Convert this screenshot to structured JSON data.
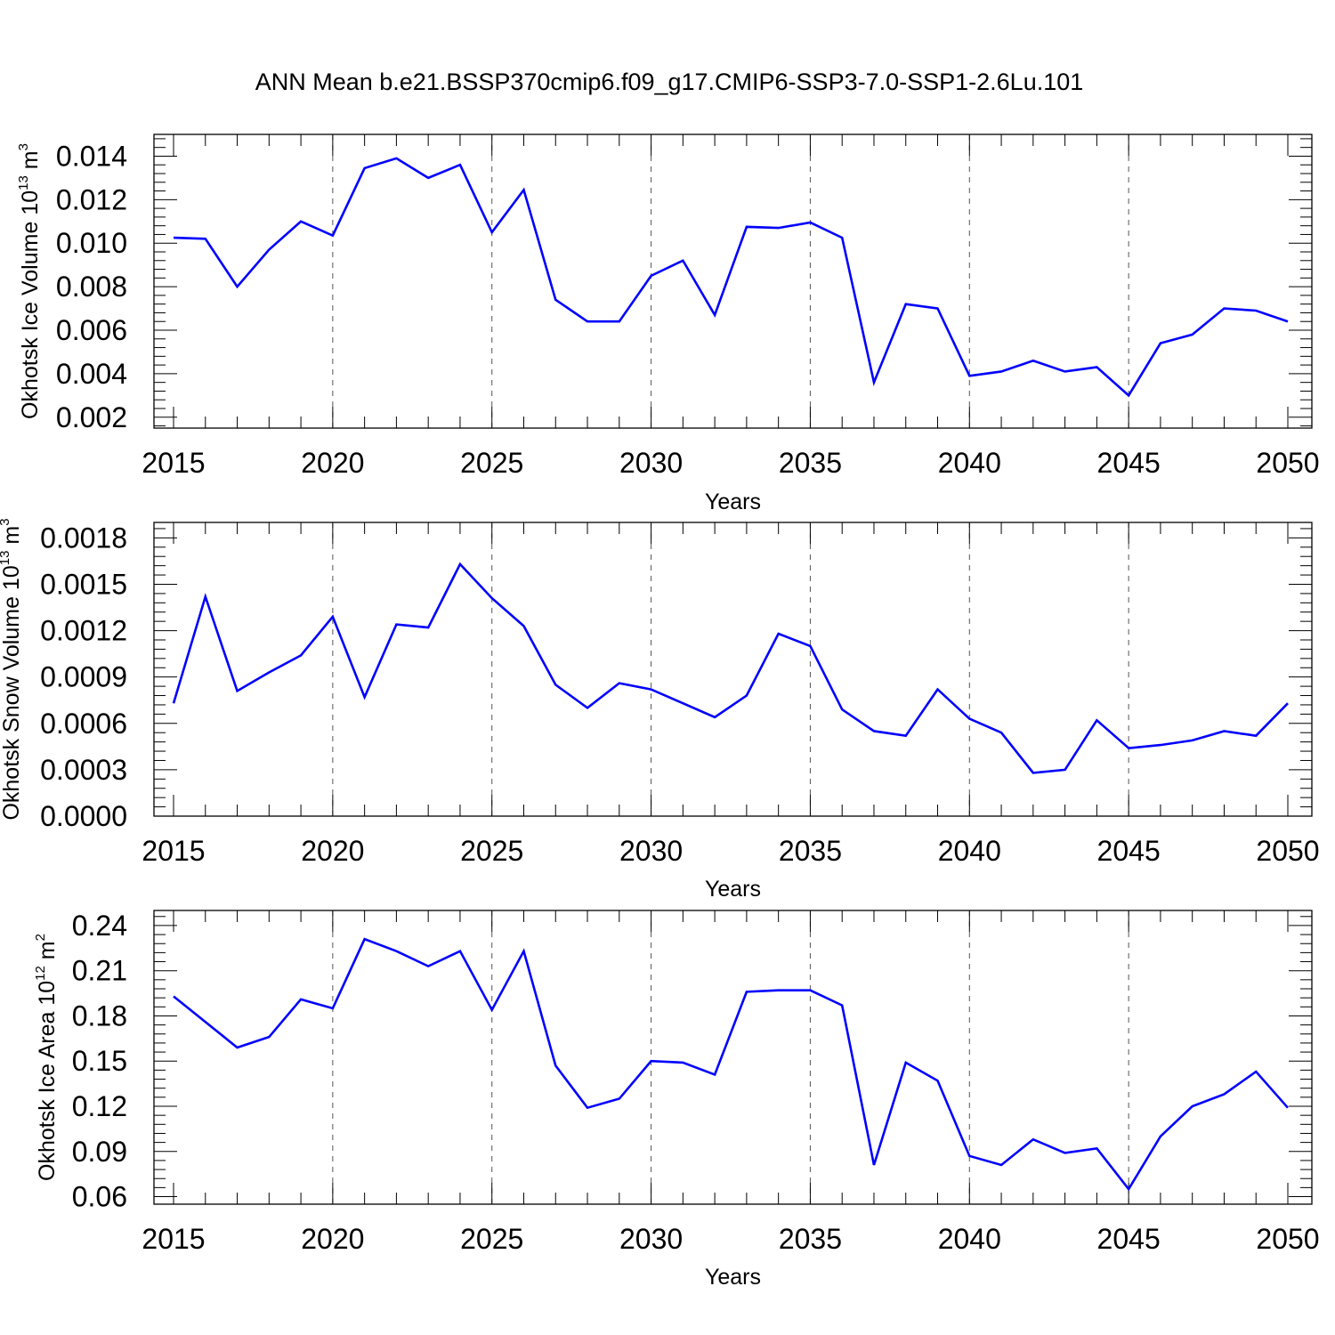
{
  "title": "ANN Mean b.e21.BSSP370cmip6.f09_g17.CMIP6-SSP3-7.0-SSP1-2.6Lu.101",
  "chart_data": [
    {
      "type": "line",
      "ylabel": {
        "prefix": "Okhotsk Ice Volume 10",
        "exponent": "13",
        "unit": " m",
        "unit_exponent": "3"
      },
      "xlabel": "Years",
      "xlim": [
        2015,
        2050
      ],
      "ylim": [
        0.0015,
        0.015
      ],
      "x_ticks": [
        "2015",
        "2020",
        "2025",
        "2030",
        "2035",
        "2040",
        "2045",
        "2050"
      ],
      "y_ticks": [
        "0.002",
        "0.004",
        "0.006",
        "0.008",
        "0.010",
        "0.012",
        "0.014"
      ],
      "y_tick_values": [
        0.002,
        0.004,
        0.006,
        0.008,
        0.01,
        0.012,
        0.014
      ],
      "color": "#0000ff",
      "grid": "vertical dashed at major x ticks",
      "x": [
        2015,
        2016,
        2017,
        2018,
        2019,
        2020,
        2021,
        2022,
        2023,
        2024,
        2025,
        2026,
        2027,
        2028,
        2029,
        2030,
        2031,
        2032,
        2033,
        2034,
        2035,
        2036,
        2037,
        2038,
        2039,
        2040,
        2041,
        2042,
        2043,
        2044,
        2045,
        2046,
        2047,
        2048,
        2049,
        2050
      ],
      "values": [
        0.01025,
        0.0102,
        0.008,
        0.0097,
        0.011,
        0.01035,
        0.01345,
        0.0139,
        0.013,
        0.0136,
        0.0105,
        0.01245,
        0.0074,
        0.0064,
        0.0064,
        0.0085,
        0.0092,
        0.0067,
        0.01075,
        0.0107,
        0.01095,
        0.01025,
        0.0036,
        0.0072,
        0.007,
        0.0039,
        0.0041,
        0.0046,
        0.0041,
        0.0043,
        0.003,
        0.0054,
        0.0058,
        0.007,
        0.0069,
        0.0064
      ]
    },
    {
      "type": "line",
      "ylabel": {
        "prefix": "Okhotsk Snow Volume 10",
        "exponent": "13",
        "unit": " m",
        "unit_exponent": "3"
      },
      "xlabel": "Years",
      "xlim": [
        2015,
        2050
      ],
      "ylim": [
        0.0,
        0.0019
      ],
      "x_ticks": [
        "2015",
        "2020",
        "2025",
        "2030",
        "2035",
        "2040",
        "2045",
        "2050"
      ],
      "y_ticks": [
        "0.0000",
        "0.0003",
        "0.0006",
        "0.0009",
        "0.0012",
        "0.0015",
        "0.0018"
      ],
      "y_tick_values": [
        0.0,
        0.0003,
        0.0006,
        0.0009,
        0.0012,
        0.0015,
        0.0018
      ],
      "color": "#0000ff",
      "grid": "vertical dashed at major x ticks",
      "x": [
        2015,
        2016,
        2017,
        2018,
        2019,
        2020,
        2021,
        2022,
        2023,
        2024,
        2025,
        2026,
        2027,
        2028,
        2029,
        2030,
        2031,
        2032,
        2033,
        2034,
        2035,
        2036,
        2037,
        2038,
        2039,
        2040,
        2041,
        2042,
        2043,
        2044,
        2045,
        2046,
        2047,
        2048,
        2049,
        2050
      ],
      "values": [
        0.00073,
        0.00142,
        0.00081,
        0.00093,
        0.00104,
        0.00129,
        0.00077,
        0.00124,
        0.00122,
        0.00163,
        0.00141,
        0.00123,
        0.00085,
        0.0007,
        0.00086,
        0.00082,
        0.00073,
        0.00064,
        0.00078,
        0.00118,
        0.0011,
        0.00069,
        0.00055,
        0.00052,
        0.00082,
        0.00063,
        0.00054,
        0.00028,
        0.0003,
        0.00062,
        0.00044,
        0.00046,
        0.00049,
        0.00055,
        0.00052,
        0.00073
      ]
    },
    {
      "type": "line",
      "ylabel": {
        "prefix": "Okhotsk Ice Area 10",
        "exponent": "12",
        "unit": " m",
        "unit_exponent": "2"
      },
      "xlabel": "Years",
      "xlim": [
        2015,
        2050
      ],
      "ylim": [
        0.055,
        0.25
      ],
      "x_ticks": [
        "2015",
        "2020",
        "2025",
        "2030",
        "2035",
        "2040",
        "2045",
        "2050"
      ],
      "y_ticks": [
        "0.06",
        "0.09",
        "0.12",
        "0.15",
        "0.18",
        "0.21",
        "0.24"
      ],
      "y_tick_values": [
        0.06,
        0.09,
        0.12,
        0.15,
        0.18,
        0.21,
        0.24
      ],
      "color": "#0000ff",
      "grid": "vertical dashed at major x ticks",
      "x": [
        2015,
        2016,
        2017,
        2018,
        2019,
        2020,
        2021,
        2022,
        2023,
        2024,
        2025,
        2026,
        2027,
        2028,
        2029,
        2030,
        2031,
        2032,
        2033,
        2034,
        2035,
        2036,
        2037,
        2038,
        2039,
        2040,
        2041,
        2042,
        2043,
        2044,
        2045,
        2046,
        2047,
        2048,
        2049,
        2050
      ],
      "values": [
        0.193,
        0.176,
        0.159,
        0.166,
        0.191,
        0.185,
        0.231,
        0.223,
        0.213,
        0.223,
        0.184,
        0.223,
        0.147,
        0.119,
        0.125,
        0.15,
        0.149,
        0.141,
        0.196,
        0.197,
        0.197,
        0.187,
        0.081,
        0.149,
        0.137,
        0.087,
        0.081,
        0.098,
        0.089,
        0.092,
        0.065,
        0.1,
        0.12,
        0.128,
        0.143,
        0.119
      ]
    }
  ]
}
